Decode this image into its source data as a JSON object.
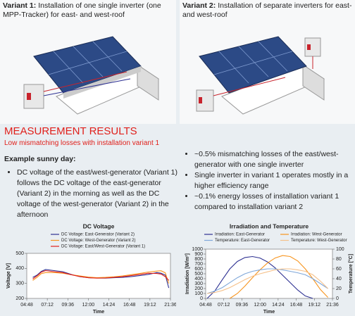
{
  "variant1": {
    "label": "Variant 1:",
    "text": "Installation of one single inverter (one MPP-Tracker) for east- and west-roof"
  },
  "variant2": {
    "label": "Variant 2:",
    "text": "Installation of separate inverters for east- and west-roof"
  },
  "results": {
    "title": "MEASUREMENT RESULTS",
    "subtitle": "Low mismatching losses with installation variant 1",
    "example": "Example sunny day:",
    "left_bullets": [
      "DC voltage of the east/west-generator (Variant 1) follows the DC voltage of the east-generator (Variant 2) in the morning as well as the DC voltage of the west-generator (Variant 2) in the afternoon"
    ],
    "right_bullets": [
      "~0.5% mismatching losses of the east/west-generator with one single inverter",
      "Single inverter in variant 1 operates mostly in a higher efficiency range",
      "~0.1% energy losses of installation variant 1 compared to installation variant 2"
    ]
  },
  "chart_data": [
    {
      "type": "line",
      "title": "DC Voltage",
      "xlabel": "Time",
      "ylabel": "Voltage [V]",
      "x": [
        5.5,
        6,
        6.5,
        7,
        8,
        9,
        10,
        11,
        12,
        13,
        14,
        15,
        16,
        17,
        18,
        19,
        20,
        20.5,
        21,
        21.4
      ],
      "xlim": [
        4.8,
        21.6
      ],
      "xticks": [
        {
          "value": 4.8,
          "label": "04:48"
        },
        {
          "value": 7.2,
          "label": "07:12"
        },
        {
          "value": 9.6,
          "label": "09:36"
        },
        {
          "value": 12,
          "label": "12:00"
        },
        {
          "value": 14.4,
          "label": "14:24"
        },
        {
          "value": 16.8,
          "label": "16:48"
        },
        {
          "value": 19.2,
          "label": "19:12"
        },
        {
          "value": 21.6,
          "label": "21:36"
        }
      ],
      "ylim": [
        200,
        500
      ],
      "yticks": [
        200,
        300,
        400,
        500
      ],
      "series": [
        {
          "name": "DC Voltage: East-Generator (Variant 2)",
          "color": "#2e3192",
          "values": [
            340,
            355,
            380,
            392,
            385,
            378,
            360,
            345,
            338,
            336,
            335,
            338,
            340,
            345,
            352,
            360,
            372,
            368,
            355,
            270
          ]
        },
        {
          "name": "DC Voltage: West-Generator (Variant 2)",
          "color": "#f7941d",
          "values": [
            320,
            340,
            365,
            372,
            372,
            368,
            358,
            350,
            342,
            338,
            340,
            344,
            350,
            358,
            366,
            376,
            382,
            384,
            370,
            300
          ]
        },
        {
          "name": "DC Voltage: East/West-Generator (Variant 1)",
          "color": "#e0201b",
          "values": [
            330,
            350,
            375,
            385,
            378,
            372,
            358,
            346,
            338,
            335,
            336,
            340,
            345,
            352,
            360,
            368,
            366,
            362,
            345,
            320
          ]
        }
      ]
    },
    {
      "type": "line",
      "title": "Irradiation and Temperature",
      "xlabel": "Time",
      "ylabel": "Irradiation [W/m²]",
      "y2label": "Temperature [°C]",
      "x": [
        5,
        6,
        7,
        8,
        9,
        10,
        11,
        12,
        13,
        14,
        15,
        16,
        17,
        18,
        19,
        20,
        21
      ],
      "xlim": [
        4.8,
        21.6
      ],
      "xticks": [
        {
          "value": 4.8,
          "label": "04:48"
        },
        {
          "value": 7.2,
          "label": "07:12"
        },
        {
          "value": 9.6,
          "label": "09:36"
        },
        {
          "value": 12,
          "label": "12:00"
        },
        {
          "value": 14.4,
          "label": "14:24"
        },
        {
          "value": 16.8,
          "label": "16:48"
        },
        {
          "value": 19.2,
          "label": "19:12"
        },
        {
          "value": 21.6,
          "label": "21:36"
        }
      ],
      "ylim": [
        0,
        1000
      ],
      "yticks": [
        0,
        100,
        200,
        300,
        400,
        500,
        600,
        700,
        800,
        900,
        1000
      ],
      "y2lim": [
        0,
        100
      ],
      "y2ticks": [
        0,
        20,
        40,
        60,
        80,
        100
      ],
      "series": [
        {
          "name": "Irradiation: East-Generator",
          "color": "#2e3192",
          "values": [
            0,
            150,
            380,
            600,
            750,
            830,
            850,
            820,
            740,
            620,
            470,
            320,
            170,
            50,
            0,
            null,
            null
          ]
        },
        {
          "name": "Irradiation: West-Generator",
          "color": "#f7941d",
          "values": [
            null,
            null,
            null,
            0,
            100,
            250,
            420,
            580,
            720,
            820,
            870,
            850,
            760,
            600,
            400,
            180,
            20
          ]
        },
        {
          "name": "Temperature: East-Generator",
          "color": "#7fa7d9",
          "axis": "y2",
          "values": [
            10,
            15,
            22,
            32,
            42,
            50,
            55,
            58,
            60,
            60,
            58,
            55,
            52,
            48,
            40,
            30,
            20
          ]
        },
        {
          "name": "Temperature: West-Generator",
          "color": "#f5c08a",
          "axis": "y2",
          "values": [
            10,
            12,
            16,
            22,
            30,
            38,
            45,
            50,
            54,
            58,
            60,
            60,
            58,
            55,
            48,
            35,
            20
          ]
        }
      ]
    }
  ]
}
